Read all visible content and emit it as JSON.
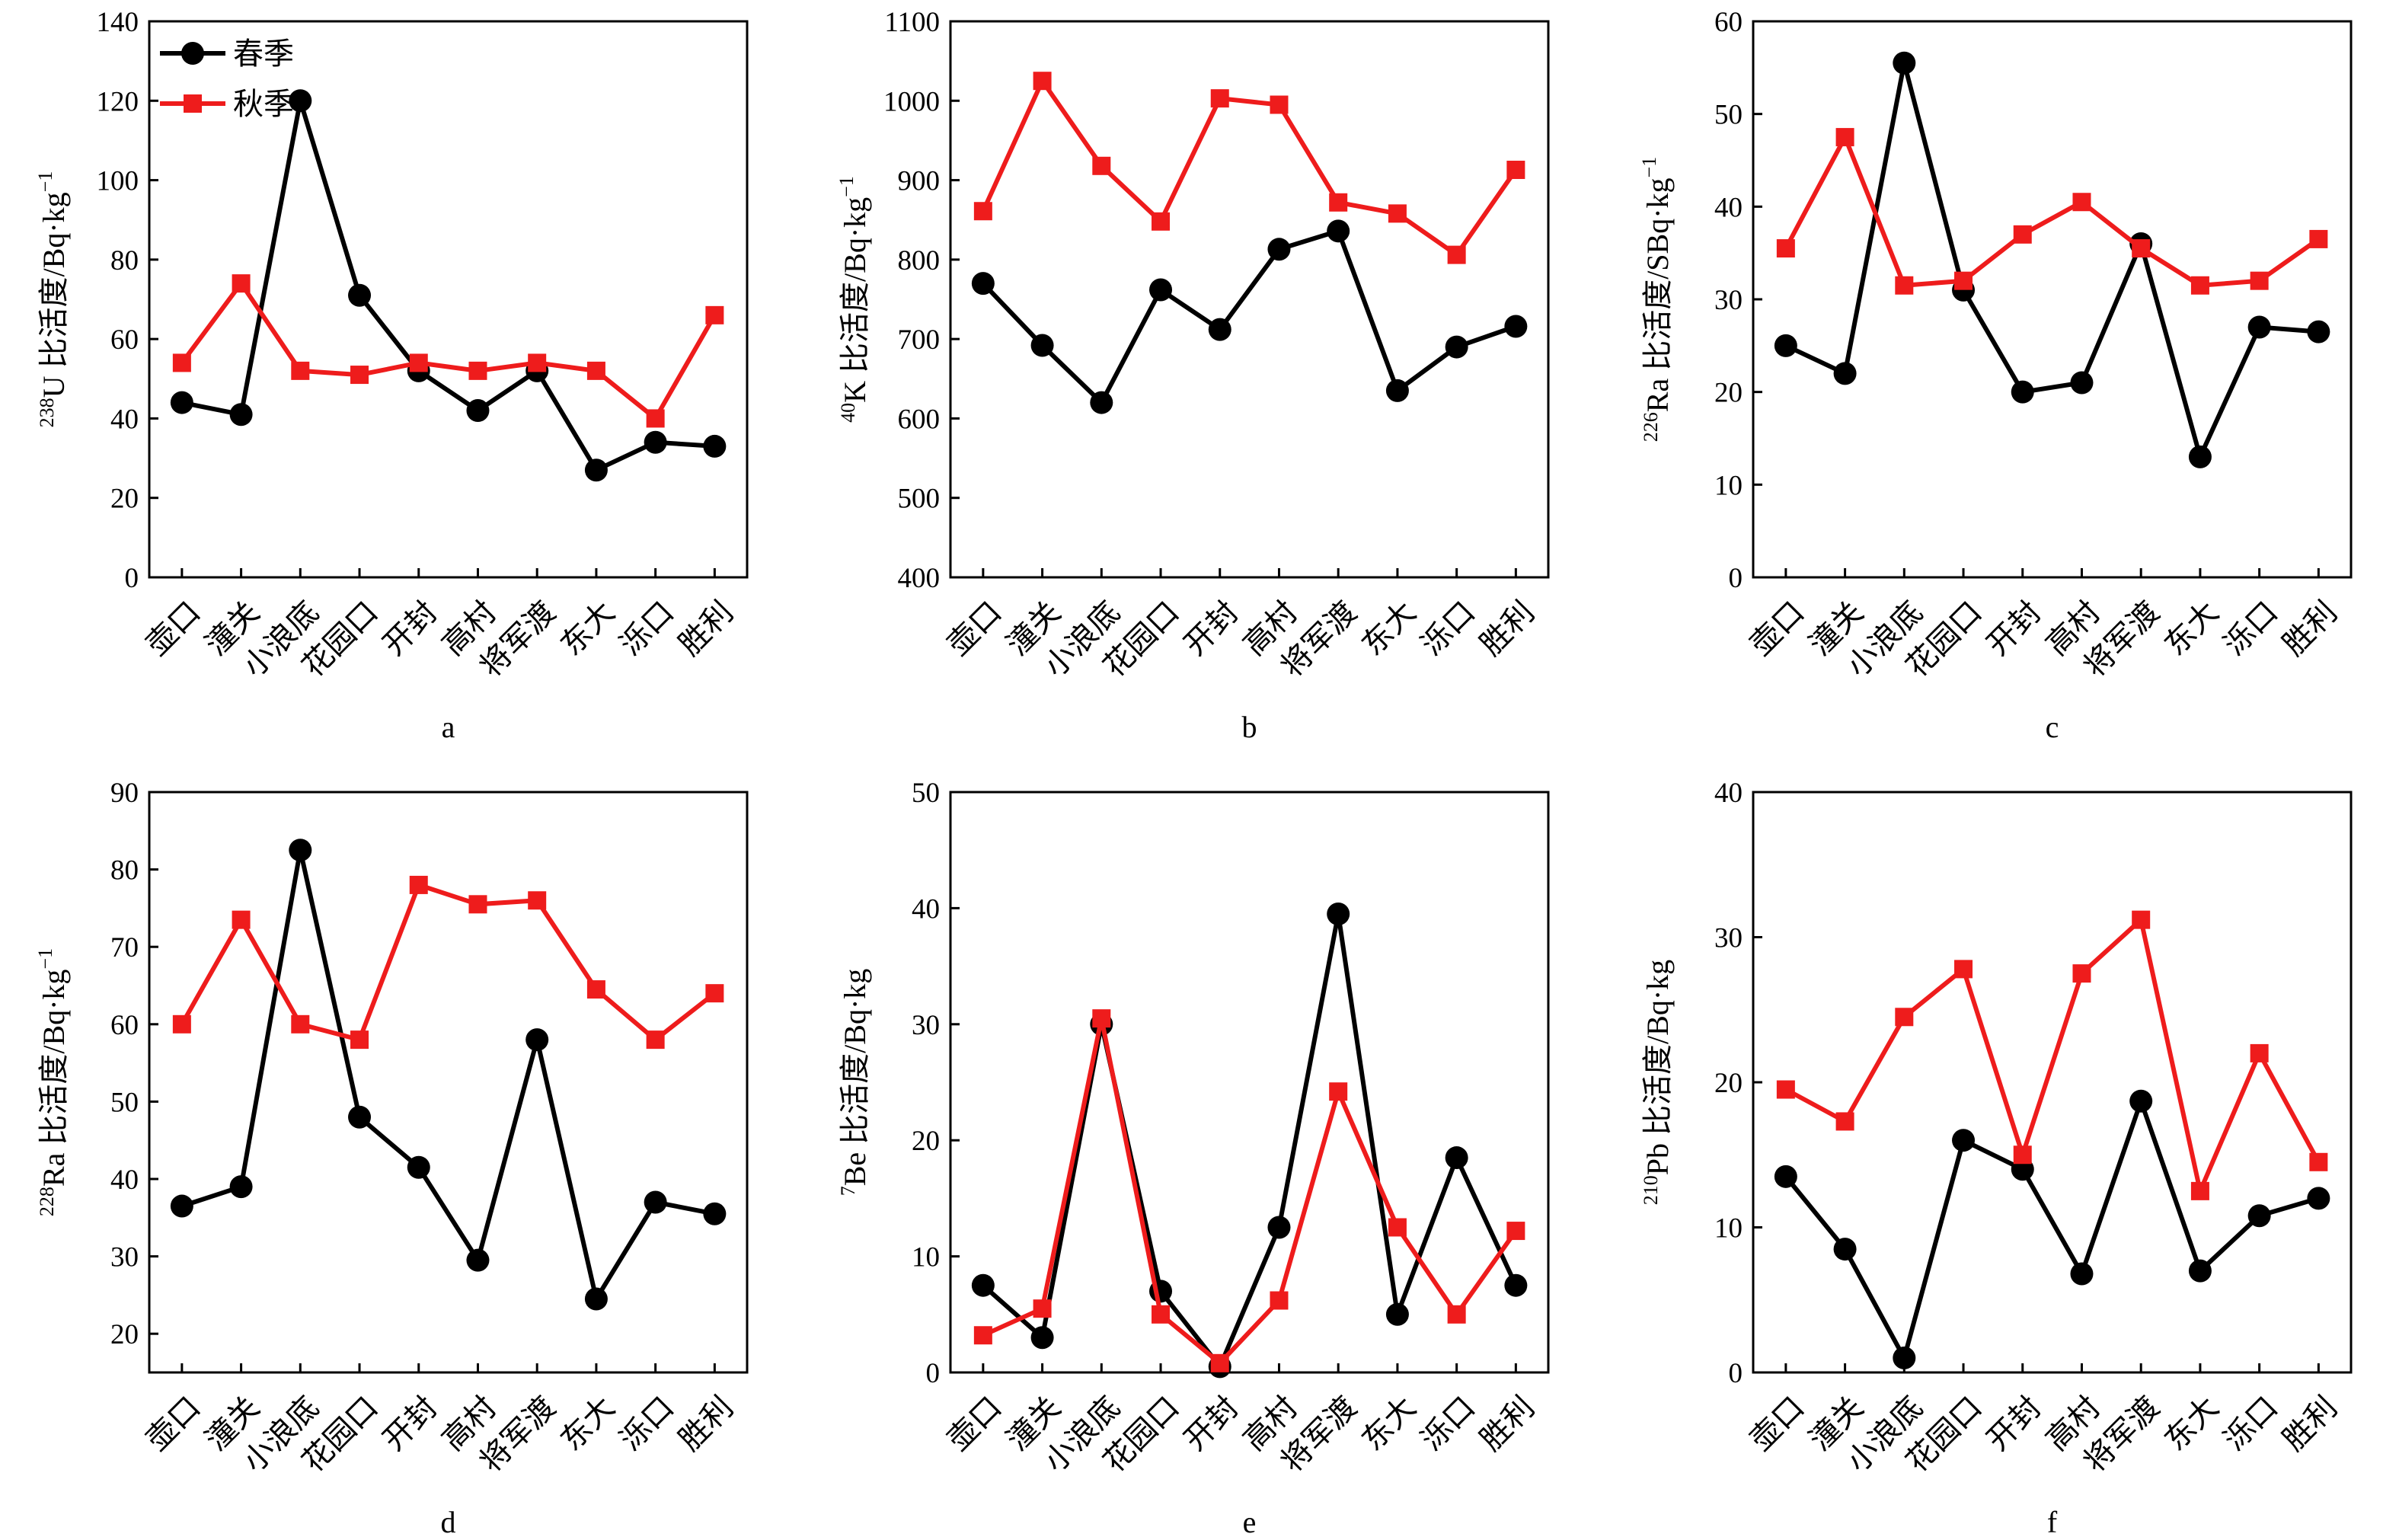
{
  "legend": [
    {
      "name": "春季",
      "color": "#000000",
      "marker": "circle"
    },
    {
      "name": "秋季",
      "color": "#ee1c1c",
      "marker": "square"
    }
  ],
  "chart_data": [
    {
      "id": "a",
      "type": "line",
      "panel_label": "a",
      "ylabel_sup": "238",
      "ylabel_main": "U 比活度/Bq·kg",
      "ylabel_exp": "−1",
      "categories": [
        "壶口",
        "潼关",
        "小浪底",
        "花园口",
        "开封",
        "高村",
        "将军渡",
        "东大",
        "泺口",
        "胜利"
      ],
      "ylim": [
        0,
        140
      ],
      "yticks": [
        0,
        20,
        40,
        60,
        80,
        100,
        120,
        140
      ],
      "show_legend": true,
      "series": [
        {
          "name": "春季",
          "values": [
            44,
            41,
            120,
            71,
            52,
            42,
            52,
            27,
            34,
            33
          ]
        },
        {
          "name": "秋季",
          "values": [
            54,
            74,
            52,
            51,
            54,
            52,
            54,
            52,
            40,
            66
          ]
        }
      ]
    },
    {
      "id": "b",
      "type": "line",
      "panel_label": "b",
      "ylabel_sup": "40",
      "ylabel_main": "K 比活度/Bq·kg",
      "ylabel_exp": "−1",
      "categories": [
        "壶口",
        "潼关",
        "小浪底",
        "花园口",
        "开封",
        "高村",
        "将军渡",
        "东大",
        "泺口",
        "胜利"
      ],
      "ylim": [
        400,
        1100
      ],
      "yticks": [
        400,
        500,
        600,
        700,
        800,
        900,
        1000,
        1100
      ],
      "show_legend": false,
      "series": [
        {
          "name": "春季",
          "values": [
            770,
            692,
            620,
            762,
            712,
            813,
            836,
            635,
            690,
            716
          ]
        },
        {
          "name": "秋季",
          "values": [
            861,
            1025,
            918,
            848,
            1003,
            995,
            872,
            858,
            806,
            913
          ]
        }
      ]
    },
    {
      "id": "c",
      "type": "line",
      "panel_label": "c",
      "ylabel_sup": "226",
      "ylabel_main": "Ra 比活度/SBq·kg",
      "ylabel_exp": "−1",
      "categories": [
        "壶口",
        "潼关",
        "小浪底",
        "花园口",
        "开封",
        "高村",
        "将军渡",
        "东大",
        "泺口",
        "胜利"
      ],
      "ylim": [
        0,
        60
      ],
      "yticks": [
        0,
        10,
        20,
        30,
        40,
        50,
        60
      ],
      "show_legend": false,
      "series": [
        {
          "name": "春季",
          "values": [
            25,
            22,
            55.5,
            31,
            20,
            21,
            36,
            13,
            27,
            26.5
          ]
        },
        {
          "name": "秋季",
          "values": [
            35.5,
            47.5,
            31.5,
            32,
            37,
            40.5,
            35.5,
            31.5,
            32,
            36.5
          ]
        }
      ]
    },
    {
      "id": "d",
      "type": "line",
      "panel_label": "d",
      "ylabel_sup": "228",
      "ylabel_main": "Ra 比活度/Bq·kg",
      "ylabel_exp": "−1",
      "categories": [
        "壶口",
        "潼关",
        "小浪底",
        "花园口",
        "开封",
        "高村",
        "将军渡",
        "东大",
        "泺口",
        "胜利"
      ],
      "ylim": [
        15,
        90
      ],
      "yticks": [
        20,
        30,
        40,
        50,
        60,
        70,
        80,
        90
      ],
      "show_legend": false,
      "series": [
        {
          "name": "春季",
          "values": [
            36.5,
            39,
            82.5,
            48,
            41.5,
            29.5,
            58,
            24.5,
            37,
            35.5
          ]
        },
        {
          "name": "秋季",
          "values": [
            60,
            73.5,
            60,
            58,
            78,
            75.5,
            76,
            64.5,
            58,
            64
          ]
        }
      ]
    },
    {
      "id": "e",
      "type": "line",
      "panel_label": "e",
      "ylabel_sup": "7",
      "ylabel_main": "Be 比活度/Bq·kg",
      "ylabel_exp": "",
      "categories": [
        "壶口",
        "潼关",
        "小浪底",
        "花园口",
        "开封",
        "高村",
        "将军渡",
        "东大",
        "泺口",
        "胜利"
      ],
      "ylim": [
        0,
        50
      ],
      "yticks": [
        0,
        10,
        20,
        30,
        40,
        50
      ],
      "show_legend": false,
      "series": [
        {
          "name": "春季",
          "values": [
            7.5,
            3,
            30,
            7,
            0.5,
            12.5,
            39.5,
            5,
            18.5,
            7.5
          ]
        },
        {
          "name": "秋季",
          "values": [
            3.2,
            5.5,
            30.5,
            5,
            0.8,
            6.2,
            24.2,
            12.5,
            5,
            12.2
          ]
        }
      ]
    },
    {
      "id": "f",
      "type": "line",
      "panel_label": "f",
      "ylabel_sup": "210",
      "ylabel_main": "Pb 比活度/Bq·kg",
      "ylabel_exp": "",
      "categories": [
        "壶口",
        "潼关",
        "小浪底",
        "花园口",
        "开封",
        "高村",
        "将军渡",
        "东大",
        "泺口",
        "胜利"
      ],
      "ylim": [
        0,
        40
      ],
      "yticks": [
        0,
        10,
        20,
        30,
        40
      ],
      "show_legend": false,
      "series": [
        {
          "name": "春季",
          "values": [
            13.5,
            8.5,
            1,
            16,
            14,
            6.8,
            18.7,
            7,
            10.8,
            12
          ]
        },
        {
          "name": "秋季",
          "values": [
            19.5,
            17.3,
            24.5,
            27.8,
            15,
            27.5,
            31.2,
            12.5,
            22,
            14.5
          ]
        }
      ]
    }
  ]
}
